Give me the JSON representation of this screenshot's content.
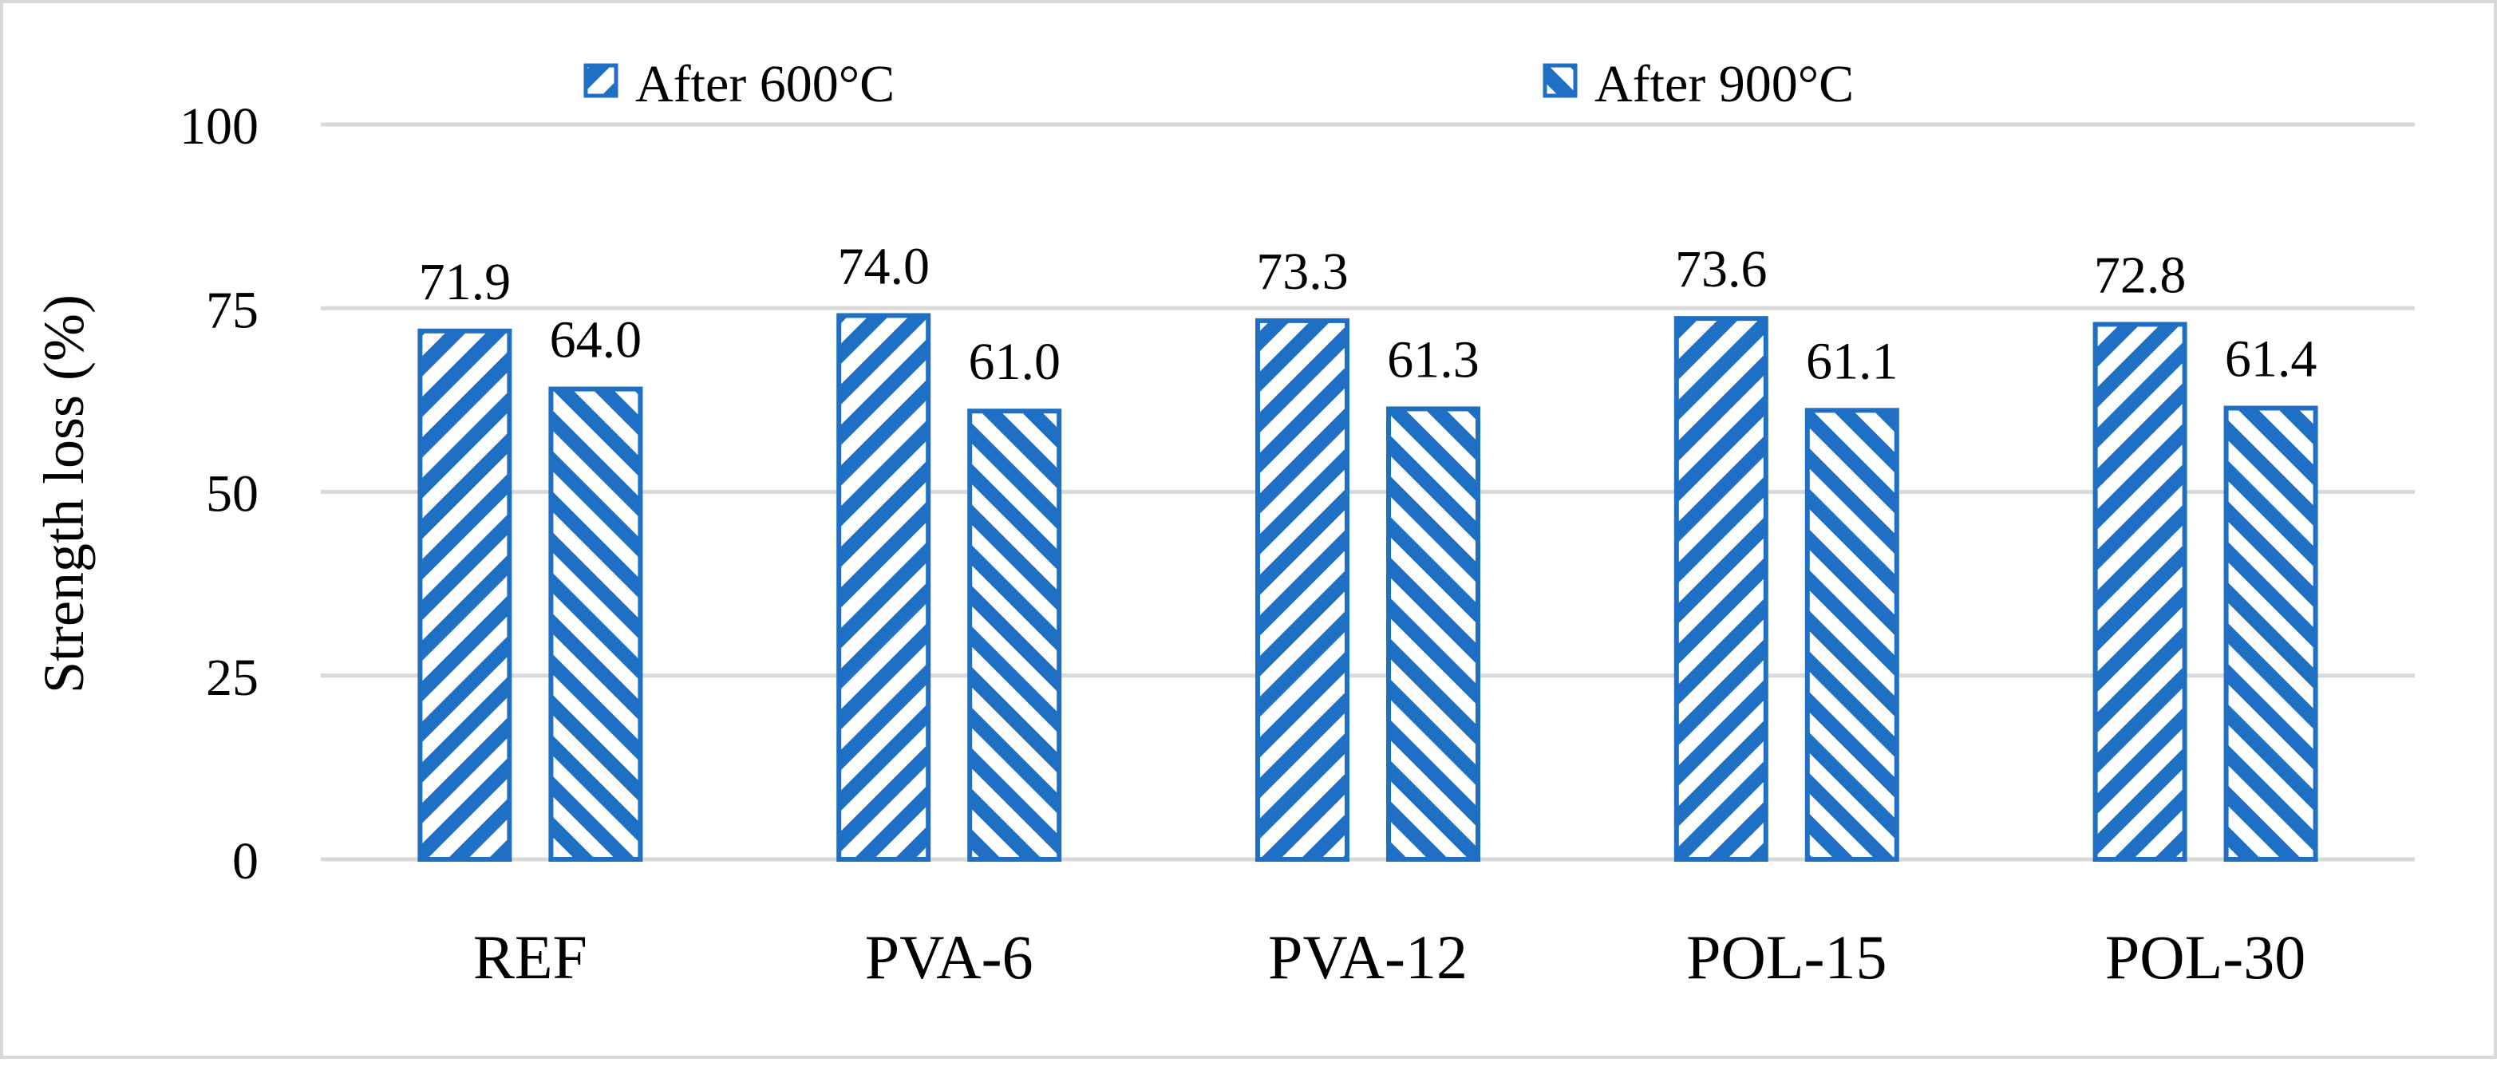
{
  "chart_data": {
    "type": "bar",
    "title": "",
    "xlabel": "",
    "ylabel": "Strength loss (%)",
    "ylim": [
      0,
      100
    ],
    "yticks": [
      "0",
      "25",
      "50",
      "75",
      "100"
    ],
    "ytick_values": [
      0,
      25,
      50,
      75,
      100
    ],
    "grid": true,
    "legend_position": "top",
    "categories": [
      "REF",
      "PVA-6",
      "PVA-12",
      "POL-15",
      "POL-30"
    ],
    "series": [
      {
        "name": "After 600°C",
        "pattern": "forward-diagonal",
        "values": [
          71.9,
          74.0,
          73.3,
          73.6,
          72.8
        ],
        "labels": [
          "71.9",
          "74.0",
          "73.3",
          "73.6",
          "72.8"
        ]
      },
      {
        "name": "After 900°C",
        "pattern": "backward-diagonal",
        "values": [
          64.0,
          61.0,
          61.3,
          61.1,
          61.4
        ],
        "labels": [
          "64.0",
          "61.0",
          "61.3",
          "61.1",
          "61.4"
        ]
      }
    ]
  },
  "colors": {
    "bar": "#1f6fc4",
    "grid": "#d9d9d9",
    "text": "#000000",
    "frame": "#d9d9d9"
  }
}
